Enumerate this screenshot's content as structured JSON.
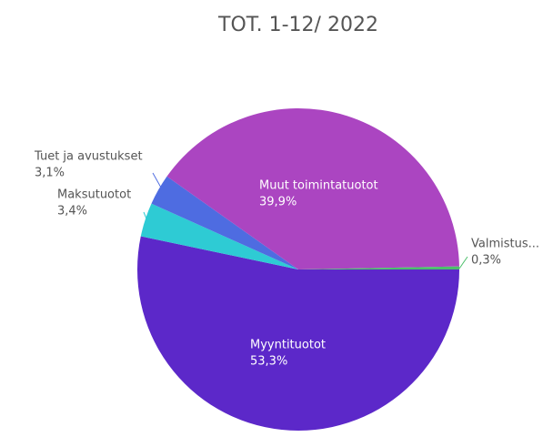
{
  "chart_data": {
    "type": "pie",
    "title": "TOT. 1-12/ 2022",
    "categories": [
      "Myyntituotot",
      "Maksutuotot",
      "Tuet ja avustukset",
      "Muut toimintatuotot",
      "Valmistus..."
    ],
    "values": [
      53.3,
      3.4,
      3.1,
      39.9,
      0.3
    ],
    "value_labels": [
      "53,3%",
      "3,4%",
      "3,1%",
      "39,9%",
      "0,3%"
    ],
    "colors": [
      "#5c28c9",
      "#2ecbd4",
      "#4e6ce1",
      "#ab45c1",
      "#4cbf6b"
    ]
  }
}
